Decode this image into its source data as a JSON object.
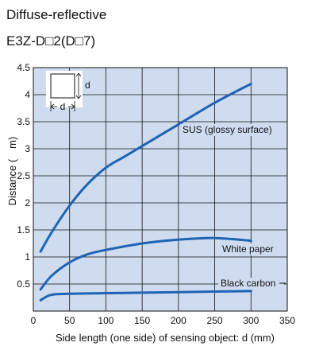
{
  "header": {
    "title": "Diffuse-reflective",
    "subtitle": "E3Z-D□2(D□7)"
  },
  "chart_data": {
    "type": "line",
    "xlabel": "Side length (one side) of sensing object: d (mm)",
    "ylabel": "Distance (　m)",
    "xlim": [
      0,
      350
    ],
    "ylim": [
      0,
      4.5
    ],
    "x_ticks": [
      "0",
      "50",
      "100",
      "150",
      "200",
      "250",
      "300",
      "350"
    ],
    "y_ticks": [
      "0.5",
      "1",
      "1.5",
      "2",
      "2.5",
      "3",
      "3.5",
      "4",
      "4.5"
    ],
    "grid": true,
    "colors": {
      "plot_bg": "#cfdcef",
      "line": "#1f63b4",
      "grid": "#111111"
    },
    "inset": {
      "dimension_label": "d"
    },
    "series": [
      {
        "name": "SUS (glossy surface)",
        "x": [
          10,
          25,
          50,
          75,
          100,
          125,
          150,
          200,
          250,
          300
        ],
        "y": [
          1.1,
          1.45,
          1.95,
          2.35,
          2.65,
          2.85,
          3.05,
          3.45,
          3.85,
          4.2
        ]
      },
      {
        "name": "White paper",
        "x": [
          10,
          25,
          50,
          75,
          100,
          150,
          200,
          250,
          300
        ],
        "y": [
          0.4,
          0.65,
          0.9,
          1.05,
          1.13,
          1.25,
          1.32,
          1.35,
          1.3
        ]
      },
      {
        "name": "Black carbon",
        "x": [
          10,
          20,
          30,
          50,
          100,
          150,
          200,
          250,
          300
        ],
        "y": [
          0.2,
          0.28,
          0.31,
          0.32,
          0.33,
          0.34,
          0.35,
          0.36,
          0.37
        ]
      }
    ]
  }
}
